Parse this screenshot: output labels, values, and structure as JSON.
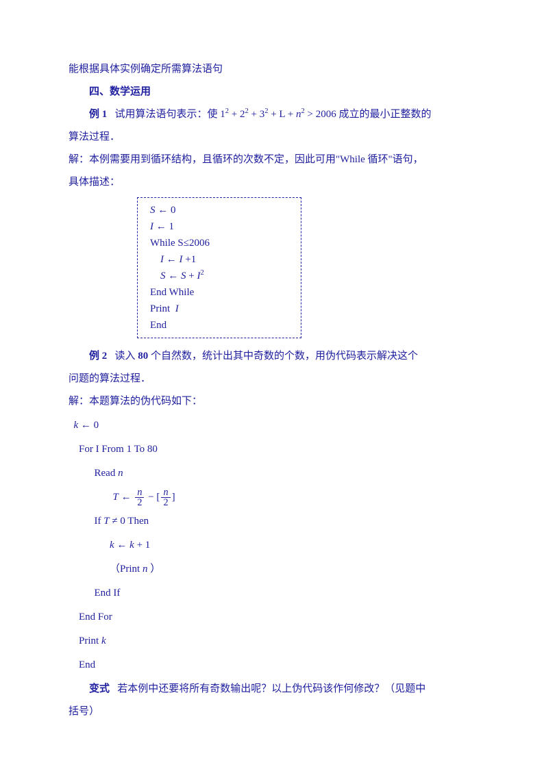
{
  "text_color": "#2020a0",
  "line1": "能根据具体实例确定所需算法语句",
  "section_title": "四、数学运用",
  "ex1_label": "例 1",
  "ex1_text_a": "试用算法语句表示：使",
  "ex1_formula_plain": "1² + 2² + 3² + L + n² > 2006",
  "ex1_text_b": "成立的最小正整数的",
  "ex1_text_c": "算法过程．",
  "sol1_prefix": "解：",
  "sol1_text": "本例需要用到循环结构，且循环的次数不定，因此可用\"While 循环\"语句，",
  "sol1_text2": "具体描述：",
  "codebox": {
    "l1": "S ← 0",
    "l2": "I ← 1",
    "l3": "While S≤2006",
    "l4": "    I ← I +1",
    "l5": "    S ← S + I²",
    "l6": "End While",
    "l7": "Print  I",
    "l8": "End"
  },
  "ex2_label": "例 2",
  "ex2_text_a": "读入 ",
  "ex2_80": "80",
  "ex2_text_b": " 个自然数，统计出其中奇数的个数，用伪代码表示解决这个",
  "ex2_text_c": "问题的算法过程．",
  "sol2": "解：本题算法的伪代码如下：",
  "pc": {
    "l1_a": "k",
    "l1_b": " ← 0",
    "l2": "For  I  From  1  To  80",
    "l3_a": "Read  ",
    "l3_b": "n",
    "l4_T": "T",
    "l4_arrow": " ← ",
    "l4_n": "n",
    "l4_2": "2",
    "l4_minus": " − [",
    "l4_close": "]",
    "l5_a": "If  ",
    "l5_b": "T",
    "l5_c": " ≠ 0  Then",
    "l6_a": "k",
    "l6_b": " ← ",
    "l6_c": "k",
    "l6_d": " + 1",
    "l7_a": "（Print  ",
    "l7_b": "n",
    "l7_c": " ）",
    "l8": "End  If",
    "l9": "End  For",
    "l10_a": "Print  ",
    "l10_b": "k",
    "l11": "End"
  },
  "variant_label": "变式",
  "variant_text": "若本例中还要将所有奇数输出呢？以上伪代码该作何修改？（见题中",
  "variant_text2": "括号）"
}
